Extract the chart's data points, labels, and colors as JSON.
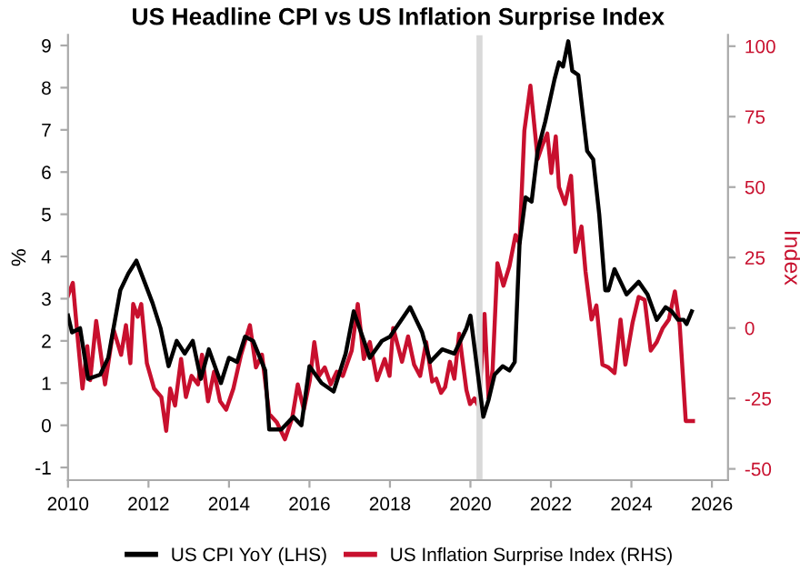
{
  "chart_data": {
    "type": "line",
    "title": "US Headline CPI vs US Inflation Surprise Index",
    "ylabel": "%",
    "y2label": "Index",
    "xlim": [
      2010,
      2026.4
    ],
    "xticks": [
      2010,
      2012,
      2014,
      2016,
      2018,
      2020,
      2022,
      2024,
      2026
    ],
    "ylim": [
      -1.3,
      9.25
    ],
    "yticks": [
      -1,
      0,
      1,
      2,
      3,
      4,
      5,
      6,
      7,
      8,
      9
    ],
    "y2lim": [
      -54,
      104
    ],
    "y2ticks": [
      -50,
      -25,
      0,
      25,
      50,
      75,
      100
    ],
    "legend": "bottom",
    "grid": false,
    "bands": [
      {
        "axis": "x",
        "from": 2020.15,
        "to": 2020.3,
        "color": "#d9d9d9"
      }
    ],
    "series": [
      {
        "name": "US CPI YoY (LHS)",
        "color": "#000000",
        "x": [
          2010.0,
          2010.1,
          2010.3,
          2010.5,
          2010.8,
          2011.0,
          2011.3,
          2011.5,
          2011.7,
          2011.9,
          2012.1,
          2012.3,
          2012.5,
          2012.7,
          2012.9,
          2013.1,
          2013.3,
          2013.5,
          2013.8,
          2014.0,
          2014.2,
          2014.4,
          2014.6,
          2014.9,
          2015.0,
          2015.3,
          2015.6,
          2015.8,
          2016.0,
          2016.3,
          2016.6,
          2016.9,
          2017.1,
          2017.5,
          2017.8,
          2018.0,
          2018.5,
          2018.8,
          2019.0,
          2019.3,
          2019.6,
          2019.9,
          2020.0,
          2020.32,
          2020.45,
          2020.6,
          2020.8,
          2020.97,
          2021.1,
          2021.22,
          2021.37,
          2021.52,
          2021.67,
          2021.86,
          2022.09,
          2022.2,
          2022.3,
          2022.43,
          2022.53,
          2022.68,
          2022.9,
          2023.05,
          2023.2,
          2023.35,
          2023.43,
          2023.58,
          2023.73,
          2023.88,
          2024.18,
          2024.4,
          2024.63,
          2024.85,
          2025.0,
          2025.16,
          2025.3,
          2025.37,
          2025.5
        ],
        "values": [
          2.6,
          2.2,
          2.3,
          1.1,
          1.2,
          1.6,
          3.2,
          3.6,
          3.9,
          3.4,
          2.9,
          2.3,
          1.4,
          2.0,
          1.7,
          2.0,
          1.1,
          1.8,
          1.0,
          1.6,
          1.5,
          2.1,
          2.0,
          1.3,
          -0.1,
          -0.1,
          0.2,
          0.0,
          1.4,
          1.0,
          0.8,
          1.7,
          2.7,
          1.6,
          2.0,
          2.1,
          2.8,
          2.2,
          1.5,
          1.8,
          1.7,
          2.3,
          2.6,
          0.2,
          0.6,
          1.2,
          1.4,
          1.3,
          1.5,
          4.3,
          5.4,
          5.3,
          6.5,
          7.2,
          8.2,
          8.6,
          8.5,
          9.1,
          8.4,
          8.3,
          6.5,
          6.3,
          5.0,
          3.2,
          3.2,
          3.7,
          3.4,
          3.1,
          3.4,
          3.1,
          2.5,
          2.8,
          2.7,
          2.5,
          2.5,
          2.4,
          2.7
        ]
      },
      {
        "name": "US Inflation Surprise Index (RHS)",
        "color": "#c8102e",
        "axis": "y2",
        "x": [
          2010.0,
          2010.12,
          2010.25,
          2010.36,
          2010.48,
          2010.55,
          2010.7,
          2010.92,
          2011.13,
          2011.32,
          2011.44,
          2011.55,
          2011.62,
          2011.73,
          2011.82,
          2011.96,
          2012.14,
          2012.32,
          2012.44,
          2012.54,
          2012.66,
          2012.81,
          2012.93,
          2013.07,
          2013.23,
          2013.33,
          2013.48,
          2013.63,
          2013.78,
          2013.93,
          2014.11,
          2014.3,
          2014.52,
          2014.67,
          2014.82,
          2015.0,
          2015.19,
          2015.39,
          2015.57,
          2015.71,
          2015.86,
          2016.01,
          2016.12,
          2016.24,
          2016.38,
          2016.53,
          2016.68,
          2016.83,
          2017.05,
          2017.2,
          2017.35,
          2017.5,
          2017.68,
          2017.87,
          2017.99,
          2018.08,
          2018.3,
          2018.45,
          2018.6,
          2018.75,
          2018.9,
          2019.05,
          2019.15,
          2019.27,
          2019.37,
          2019.49,
          2019.6,
          2019.72,
          2019.79,
          2019.9,
          2019.99,
          2020.1,
          2020.21,
          2020.35,
          2020.45,
          2020.55,
          2020.67,
          2020.82,
          2020.97,
          2021.12,
          2021.22,
          2021.34,
          2021.49,
          2021.67,
          2021.79,
          2021.91,
          2022.01,
          2022.12,
          2022.2,
          2022.35,
          2022.5,
          2022.61,
          2022.76,
          2022.86,
          2023.01,
          2023.13,
          2023.28,
          2023.43,
          2023.58,
          2023.73,
          2023.85,
          2024.03,
          2024.18,
          2024.33,
          2024.48,
          2024.63,
          2024.78,
          2024.93,
          2025.08,
          2025.2,
          2025.35,
          2025.53
        ],
        "values": [
          11.5,
          16,
          -5,
          -21.5,
          -6.5,
          -18.5,
          2.5,
          -20,
          -0.5,
          -9.5,
          1,
          -12.5,
          8.5,
          4,
          8.5,
          -12.5,
          -21.5,
          -24.5,
          -36.5,
          -21.5,
          -27.5,
          -11,
          -24.5,
          -17,
          -20,
          -9.5,
          -26,
          -15.5,
          -26,
          -29,
          -21.5,
          -9.5,
          1,
          -14,
          -9.5,
          -30.5,
          -33.5,
          -39.5,
          -32,
          -20,
          -29,
          -18.5,
          -5,
          -17,
          -14,
          -20,
          -15.5,
          -17,
          -8,
          8.5,
          -11,
          -5,
          -18.5,
          -11,
          -17,
          0,
          -12,
          -3,
          -13,
          -17,
          -5,
          -19,
          -18,
          -23,
          -21,
          -12,
          -18,
          -2,
          -10,
          -22,
          -27,
          -25,
          -28,
          5,
          -25,
          -15,
          23,
          15,
          22,
          33,
          30,
          70,
          86,
          60,
          65,
          69,
          55,
          68,
          50,
          44,
          54,
          27,
          36,
          20,
          3,
          8,
          -13,
          -14,
          -16,
          3,
          -13,
          2,
          11,
          10,
          -8,
          -5,
          0,
          3,
          13,
          1,
          -33,
          -33
        ]
      }
    ]
  }
}
